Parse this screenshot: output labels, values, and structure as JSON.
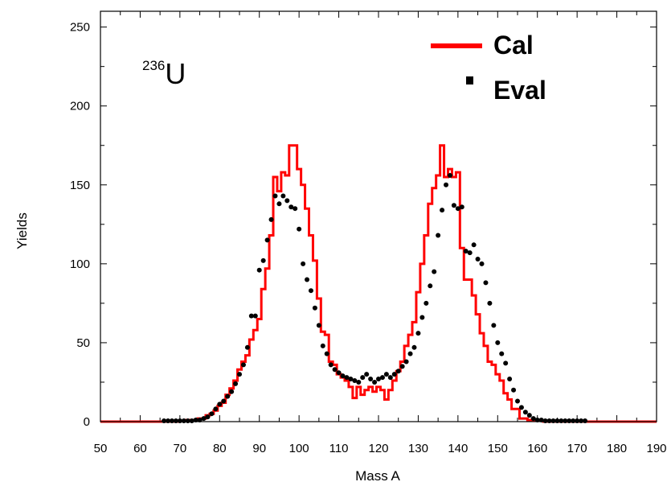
{
  "chart_data": {
    "type": "line",
    "title": "",
    "annotation": {
      "superscript": "236",
      "symbol": "U"
    },
    "xlabel": "Mass A",
    "ylabel": "Yields",
    "xlim": [
      50,
      190
    ],
    "ylim": [
      0,
      260
    ],
    "xticks": [
      50,
      60,
      70,
      80,
      90,
      100,
      110,
      120,
      130,
      140,
      150,
      160,
      170,
      180,
      190
    ],
    "yticks": [
      0,
      50,
      100,
      150,
      200,
      250
    ],
    "grid": false,
    "legend_position": "top-right",
    "series": [
      {
        "name": "Cal",
        "style": "step",
        "color": "#ff0000",
        "x": [
          50,
          66,
          67,
          68,
          69,
          70,
          71,
          72,
          73,
          74,
          75,
          76,
          77,
          78,
          79,
          80,
          81,
          82,
          83,
          84,
          85,
          86,
          87,
          88,
          89,
          90,
          91,
          92,
          93,
          94,
          95,
          96,
          97,
          98,
          99,
          100,
          101,
          102,
          103,
          104,
          105,
          106,
          107,
          108,
          109,
          110,
          111,
          112,
          113,
          114,
          115,
          116,
          117,
          118,
          119,
          120,
          121,
          122,
          123,
          124,
          125,
          126,
          127,
          128,
          129,
          130,
          131,
          132,
          133,
          134,
          135,
          136,
          137,
          138,
          139,
          140,
          141,
          142,
          143,
          144,
          145,
          146,
          147,
          148,
          149,
          150,
          151,
          152,
          153,
          154,
          155,
          156,
          157,
          158,
          159,
          160,
          161,
          162,
          163,
          164,
          165,
          166,
          167,
          168,
          169,
          170,
          171,
          172,
          190
        ],
        "y": [
          0,
          0,
          0,
          0,
          0,
          0.5,
          0.5,
          1,
          1,
          1,
          2,
          2,
          4,
          5,
          7,
          10,
          12,
          17,
          21,
          26,
          33,
          38,
          42,
          52,
          58,
          65,
          84,
          97,
          118,
          155,
          146,
          158,
          156,
          175,
          175,
          160,
          150,
          135,
          118,
          102,
          78,
          57,
          55,
          38,
          36,
          30,
          28,
          26,
          22,
          15,
          22,
          17,
          20,
          22,
          19,
          22,
          20,
          14,
          20,
          26,
          32,
          38,
          48,
          55,
          63,
          82,
          100,
          118,
          138,
          148,
          156,
          175,
          155,
          160,
          155,
          158,
          110,
          90,
          90,
          80,
          68,
          56,
          48,
          38,
          36,
          30,
          26,
          18,
          14,
          8,
          8,
          2,
          2,
          1,
          1,
          0.5,
          0.5,
          0,
          0,
          0,
          0,
          0,
          0,
          0,
          0,
          0,
          0,
          0,
          0
        ]
      },
      {
        "name": "Eval",
        "style": "markers",
        "color": "#000000",
        "x": [
          66,
          67,
          68,
          69,
          70,
          71,
          72,
          73,
          74,
          75,
          76,
          77,
          78,
          79,
          80,
          81,
          82,
          83,
          84,
          85,
          86,
          87,
          88,
          89,
          90,
          91,
          92,
          93,
          94,
          95,
          96,
          97,
          98,
          99,
          100,
          101,
          102,
          103,
          104,
          105,
          106,
          107,
          108,
          109,
          110,
          111,
          112,
          113,
          114,
          115,
          116,
          117,
          118,
          119,
          120,
          121,
          122,
          123,
          124,
          125,
          126,
          127,
          128,
          129,
          130,
          131,
          132,
          133,
          134,
          135,
          136,
          137,
          138,
          139,
          140,
          141,
          142,
          143,
          144,
          145,
          146,
          147,
          148,
          149,
          150,
          151,
          152,
          153,
          154,
          155,
          156,
          157,
          158,
          159,
          160,
          161,
          162,
          163,
          164,
          165,
          166,
          167,
          168,
          169,
          170,
          171,
          172
        ],
        "y": [
          0.5,
          0.5,
          0.5,
          0.5,
          0.5,
          0.5,
          0.5,
          0.5,
          1,
          1,
          2,
          3,
          5,
          8,
          11,
          13,
          16,
          19,
          24,
          30,
          36,
          47,
          67,
          67,
          96,
          102,
          115,
          128,
          143,
          138,
          143,
          140,
          136,
          135,
          122,
          100,
          90,
          83,
          72,
          61,
          48,
          43,
          36,
          33,
          31,
          29,
          28,
          27,
          26,
          25,
          28,
          30,
          27,
          25,
          27,
          28,
          30,
          28,
          30,
          32,
          35,
          38,
          43,
          47,
          56,
          66,
          75,
          86,
          95,
          118,
          134,
          150,
          156,
          137,
          135,
          136,
          108,
          107,
          112,
          103,
          100,
          88,
          75,
          61,
          50,
          43,
          37,
          27,
          20,
          13,
          9,
          6,
          4,
          2,
          1,
          1,
          0.5,
          0.5,
          0.5,
          0.5,
          0.5,
          0.5,
          0.5,
          0.5,
          0.5,
          0.5,
          0.5
        ]
      }
    ]
  }
}
